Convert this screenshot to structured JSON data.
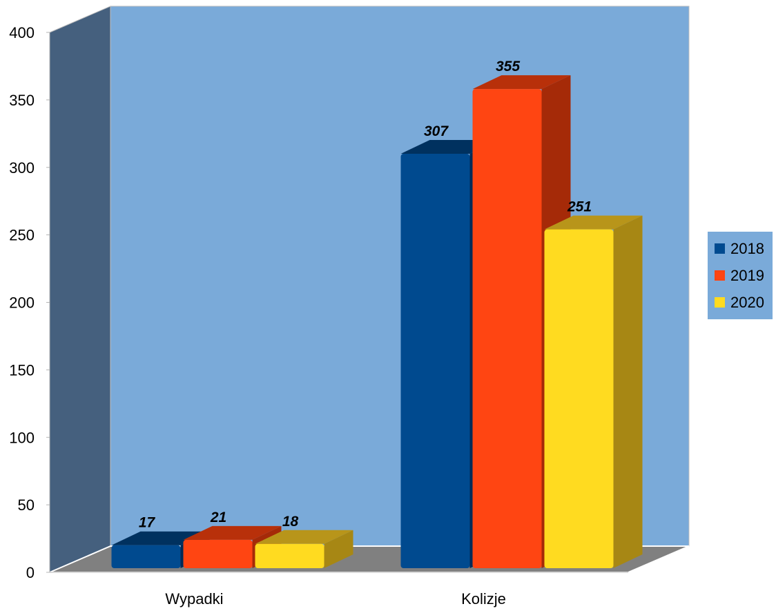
{
  "chart_data": {
    "type": "bar",
    "title": "",
    "xlabel": "",
    "ylabel": "",
    "categories": [
      "Wypadki",
      "Kolizje"
    ],
    "series": [
      {
        "name": "2018",
        "values": [
          17,
          307
        ],
        "color": "#004a8f",
        "side_color": "#002b57",
        "top_color": "#00315f"
      },
      {
        "name": "2019",
        "values": [
          21,
          355
        ],
        "color": "#ff4512",
        "side_color": "#a52a08",
        "top_color": "#b8300a"
      },
      {
        "name": "2020",
        "values": [
          18,
          251
        ],
        "color": "#ffdb20",
        "side_color": "#a78714",
        "top_color": "#b8951a"
      }
    ],
    "ylim": [
      0,
      400
    ],
    "yticks": [
      "0",
      "50",
      "100",
      "150",
      "200",
      "250",
      "300",
      "350",
      "400"
    ],
    "grid": false,
    "legend_position": "right",
    "data_labels": true,
    "style": {
      "back_wall": "#7aaad9",
      "side_wall": "#45607e",
      "floor": "#808080",
      "legend_bg": "#7aaad9"
    }
  }
}
